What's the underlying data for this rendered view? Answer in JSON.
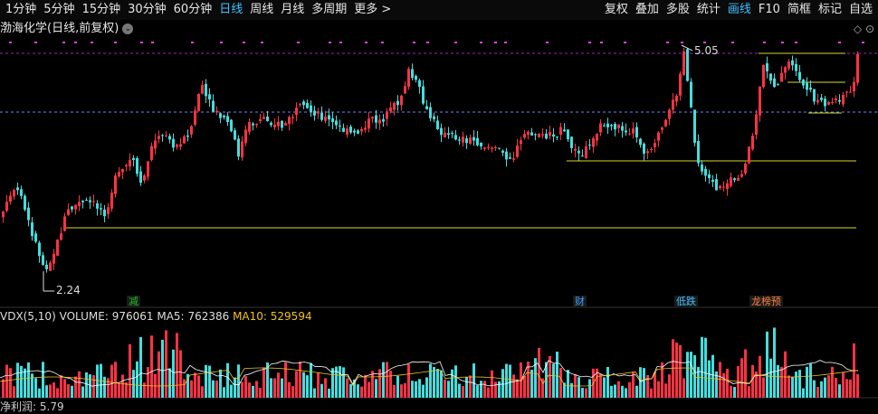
{
  "toolbar": {
    "periods": [
      "1分钟",
      "5分钟",
      "15分钟",
      "30分钟",
      "60分钟",
      "日线",
      "周线",
      "月线",
      "多周期",
      "更多 >"
    ],
    "active_period": "日线",
    "right_items": [
      "复权",
      "叠加",
      "多股",
      "统计",
      "画线",
      "F10",
      "简框",
      "标记",
      "自选"
    ],
    "active_right": "画线"
  },
  "stock": {
    "title": "渤海化学(日线,前复权)"
  },
  "price_chart": {
    "high_label": "5.05",
    "low_label": "2.24",
    "events": [
      {
        "label": "减",
        "color": "#22bb22"
      },
      {
        "label": "财",
        "color": "#3fa0ff"
      },
      {
        "label": "低跌",
        "color": "#3fc0ff"
      },
      {
        "label": "龙榜预",
        "color": "#ff8040"
      }
    ]
  },
  "volume": {
    "indicator": "VDX(5,10)",
    "volume_label": "VOLUME:",
    "volume_value": "976061",
    "ma5_label": "MA5:",
    "ma5_value": "762386",
    "ma10_label": "MA10:",
    "ma10_value": "529594"
  },
  "bottom": {
    "label": "净利润:",
    "value": "5.79"
  },
  "colors": {
    "up": "#ff3344",
    "down": "#44dddd",
    "hline": "#d8d830",
    "dash": "#a020c0",
    "ref": "#6688ff"
  }
}
